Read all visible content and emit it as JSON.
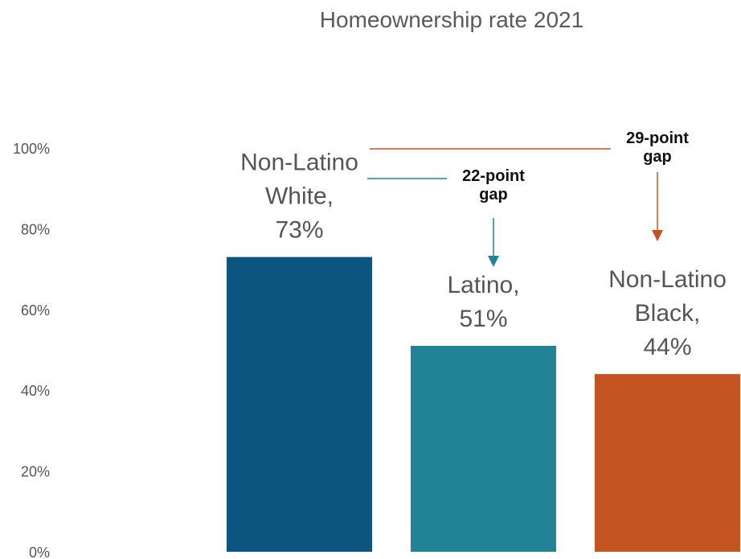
{
  "chart_data": {
    "type": "bar",
    "title": "Homeownership rate 2021",
    "xlabel": "",
    "ylabel": "",
    "ylim": [
      0,
      100
    ],
    "yticks": [
      "0%",
      "20%",
      "40%",
      "60%",
      "80%",
      "100%"
    ],
    "grid": false,
    "categories": [
      "Non-Latino White",
      "Latino",
      "Non-Latino Black"
    ],
    "values": [
      73,
      51,
      44
    ],
    "bar_labels": [
      [
        "Non-Latino",
        "White,",
        "73%"
      ],
      [
        "Latino,",
        "51%"
      ],
      [
        "Non-Latino",
        "Black,",
        "44%"
      ]
    ],
    "colors": [
      "#0b5580",
      "#238396",
      "#c35422"
    ],
    "annotations": [
      {
        "text_lines": [
          "22-point",
          "gap"
        ],
        "from": "Non-Latino White",
        "to": "Latino",
        "color": "#238396"
      },
      {
        "text_lines": [
          "29-point",
          "gap"
        ],
        "from": "Non-Latino White",
        "to": "Non-Latino Black",
        "color": "#c35422"
      }
    ]
  }
}
